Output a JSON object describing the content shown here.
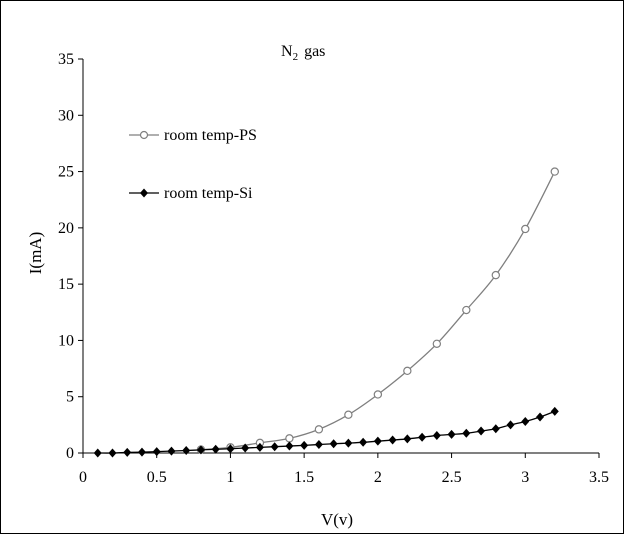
{
  "chart_data": {
    "type": "line",
    "title_main": "N",
    "title_sub": "2",
    "title_rest": "gas",
    "xlabel": "V(v)",
    "ylabel": "I(mA)",
    "xlim": [
      0,
      3.5
    ],
    "ylim": [
      0,
      35
    ],
    "x_ticks": [
      0,
      0.5,
      1,
      1.5,
      2,
      2.5,
      3,
      3.5
    ],
    "y_ticks": [
      0,
      5,
      10,
      15,
      20,
      25,
      30,
      35
    ],
    "x_tick_labels": [
      "0",
      "0.5",
      "1",
      "1.5",
      "2",
      "2.5",
      "3",
      "3.5"
    ],
    "y_tick_labels": [
      "0",
      "5",
      "10",
      "15",
      "20",
      "25",
      "30",
      "35"
    ],
    "grid": false,
    "legend_position": "top-left",
    "series": [
      {
        "name": "room temp-PS",
        "marker": "open-circle",
        "color": "#7f7f7f",
        "x": [
          0.8,
          1.0,
          1.2,
          1.4,
          1.6,
          1.8,
          2.0,
          2.2,
          2.4,
          2.6,
          2.8,
          3.0,
          3.2
        ],
        "y": [
          0.3,
          0.5,
          0.9,
          1.3,
          2.1,
          3.4,
          5.2,
          7.3,
          9.7,
          12.7,
          15.8,
          19.9,
          25.0
        ]
      },
      {
        "name": "room temp-Si",
        "marker": "filled-diamond",
        "color": "#000000",
        "x": [
          0.1,
          0.2,
          0.3,
          0.4,
          0.5,
          0.6,
          0.7,
          0.8,
          0.9,
          1.0,
          1.1,
          1.2,
          1.3,
          1.4,
          1.5,
          1.6,
          1.7,
          1.8,
          1.9,
          2.0,
          2.1,
          2.2,
          2.3,
          2.4,
          2.5,
          2.6,
          2.7,
          2.8,
          2.9,
          3.0,
          3.1,
          3.2
        ],
        "y": [
          0.0,
          0.0,
          0.05,
          0.08,
          0.12,
          0.17,
          0.22,
          0.28,
          0.33,
          0.38,
          0.44,
          0.5,
          0.56,
          0.62,
          0.68,
          0.75,
          0.82,
          0.88,
          0.95,
          1.05,
          1.15,
          1.25,
          1.4,
          1.55,
          1.65,
          1.75,
          1.95,
          2.15,
          2.5,
          2.8,
          3.2,
          3.7
        ]
      }
    ]
  }
}
